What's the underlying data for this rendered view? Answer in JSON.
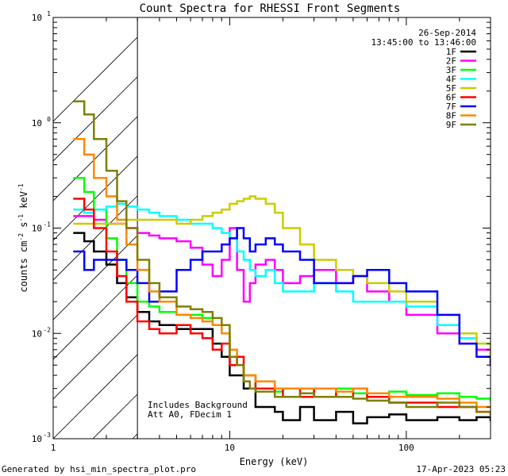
{
  "chart_data": {
    "type": "line",
    "title": "Count Spectra for RHESSI Front Segments",
    "xlabel": "Energy (keV)",
    "ylabel": "counts cm",
    "ylabel_sup1": "-2",
    "ylabel_mid": " s",
    "ylabel_sup2": "-1",
    "ylabel_end": " keV",
    "ylabel_sup3": "-1",
    "xscale": "log",
    "yscale": "log",
    "xlim": [
      1,
      300
    ],
    "ylim": [
      0.001,
      10
    ],
    "x_ticks": [
      {
        "value": 1,
        "label": "1"
      },
      {
        "value": 10,
        "label": "10"
      },
      {
        "value": 100,
        "label": "100"
      }
    ],
    "y_ticks": [
      {
        "value": 0.001,
        "base": "10",
        "exp": "-3"
      },
      {
        "value": 0.01,
        "base": "10",
        "exp": "-2"
      },
      {
        "value": 0.1,
        "base": "10",
        "exp": "-1"
      },
      {
        "value": 1,
        "base": "10",
        "exp": "0"
      },
      {
        "value": 10,
        "base": "10",
        "exp": "1"
      }
    ],
    "attenuator_cutoff_keV": 3,
    "date": "26-Sep-2014",
    "time_range": "13:45:00 to 13:46:00",
    "annotations": [
      "Includes Background",
      "Att A0, FDecim 1"
    ],
    "footer_left": "Generated by hsi_min_spectra_plot.pro",
    "footer_right": "17-Apr-2023 05:23",
    "legend_position": "top-right",
    "series": [
      {
        "name": "1F",
        "color": "#000000",
        "x": [
          1.3,
          1.5,
          1.7,
          2.0,
          2.3,
          2.6,
          3.0,
          3.5,
          4.0,
          5.0,
          6.0,
          7.0,
          8.0,
          9.0,
          10.0,
          11.0,
          12.0,
          13.0,
          14.0,
          16.0,
          18.0,
          20.0,
          25.0,
          30.0,
          40.0,
          50.0,
          60.0,
          80.0,
          100.0,
          150.0,
          200.0,
          250.0,
          300.0
        ],
        "y": [
          0.09,
          0.075,
          0.06,
          0.045,
          0.03,
          0.022,
          0.016,
          0.013,
          0.012,
          0.011,
          0.011,
          0.011,
          0.008,
          0.006,
          0.004,
          0.004,
          0.003,
          0.003,
          0.002,
          0.002,
          0.0018,
          0.0015,
          0.002,
          0.0015,
          0.0018,
          0.0014,
          0.0016,
          0.0017,
          0.0015,
          0.0016,
          0.0015,
          0.0016,
          0.0015
        ]
      },
      {
        "name": "2F",
        "color": "#ff00ff",
        "x": [
          1.3,
          1.5,
          1.7,
          2.0,
          2.3,
          2.6,
          3.0,
          3.5,
          4.0,
          5.0,
          6.0,
          7.0,
          8.0,
          9.0,
          10.0,
          11.0,
          12.0,
          13.0,
          14.0,
          16.0,
          18.0,
          20.0,
          25.0,
          30.0,
          40.0,
          50.0,
          60.0,
          80.0,
          100.0,
          150.0,
          200.0,
          250.0,
          300.0
        ],
        "y": [
          0.13,
          0.13,
          0.12,
          0.11,
          0.11,
          0.1,
          0.09,
          0.085,
          0.08,
          0.075,
          0.065,
          0.045,
          0.035,
          0.05,
          0.1,
          0.04,
          0.02,
          0.03,
          0.045,
          0.05,
          0.04,
          0.03,
          0.035,
          0.04,
          0.03,
          0.035,
          0.025,
          0.02,
          0.015,
          0.01,
          0.008,
          0.007,
          0.006
        ]
      },
      {
        "name": "3F",
        "color": "#00ff00",
        "x": [
          1.3,
          1.5,
          1.7,
          2.0,
          2.3,
          2.6,
          3.0,
          3.5,
          4.0,
          5.0,
          6.0,
          7.0,
          8.0,
          9.0,
          10.0,
          11.0,
          12.0,
          13.0,
          14.0,
          16.0,
          18.0,
          20.0,
          25.0,
          30.0,
          40.0,
          50.0,
          60.0,
          80.0,
          100.0,
          150.0,
          200.0,
          250.0,
          300.0
        ],
        "y": [
          0.3,
          0.22,
          0.15,
          0.08,
          0.05,
          0.03,
          0.02,
          0.018,
          0.016,
          0.015,
          0.015,
          0.014,
          0.012,
          0.01,
          0.006,
          0.005,
          0.004,
          0.004,
          0.003,
          0.003,
          0.0028,
          0.003,
          0.003,
          0.0025,
          0.003,
          0.0027,
          0.0025,
          0.0028,
          0.0026,
          0.0027,
          0.0025,
          0.0024,
          0.0023
        ]
      },
      {
        "name": "4F",
        "color": "#00ffff",
        "x": [
          1.3,
          1.5,
          1.7,
          2.0,
          2.3,
          2.6,
          3.0,
          3.5,
          4.0,
          5.0,
          6.0,
          7.0,
          8.0,
          9.0,
          10.0,
          11.0,
          12.0,
          13.0,
          14.0,
          16.0,
          18.0,
          20.0,
          25.0,
          30.0,
          40.0,
          50.0,
          60.0,
          80.0,
          100.0,
          150.0,
          200.0,
          250.0,
          300.0
        ],
        "y": [
          0.15,
          0.14,
          0.15,
          0.16,
          0.17,
          0.16,
          0.15,
          0.14,
          0.13,
          0.12,
          0.11,
          0.11,
          0.1,
          0.09,
          0.08,
          0.06,
          0.05,
          0.04,
          0.035,
          0.04,
          0.03,
          0.025,
          0.025,
          0.03,
          0.025,
          0.02,
          0.02,
          0.02,
          0.018,
          0.012,
          0.009,
          0.008,
          0.007
        ]
      },
      {
        "name": "5F",
        "color": "#cccc00",
        "x": [
          1.3,
          1.5,
          1.7,
          2.0,
          2.3,
          2.6,
          3.0,
          3.5,
          4.0,
          5.0,
          6.0,
          7.0,
          8.0,
          9.0,
          10.0,
          11.0,
          12.0,
          13.0,
          14.0,
          16.0,
          18.0,
          20.0,
          25.0,
          30.0,
          40.0,
          50.0,
          60.0,
          80.0,
          100.0,
          150.0,
          200.0,
          250.0,
          300.0
        ],
        "y": [
          0.11,
          0.11,
          0.11,
          0.11,
          0.11,
          0.12,
          0.12,
          0.12,
          0.12,
          0.11,
          0.12,
          0.13,
          0.14,
          0.15,
          0.17,
          0.18,
          0.19,
          0.2,
          0.19,
          0.17,
          0.14,
          0.1,
          0.07,
          0.05,
          0.04,
          0.035,
          0.03,
          0.025,
          0.02,
          0.015,
          0.01,
          0.008,
          0.006
        ]
      },
      {
        "name": "6F",
        "color": "#ff0000",
        "x": [
          1.3,
          1.5,
          1.7,
          2.0,
          2.3,
          2.6,
          3.0,
          3.5,
          4.0,
          5.0,
          6.0,
          7.0,
          8.0,
          9.0,
          10.0,
          11.0,
          12.0,
          13.0,
          14.0,
          16.0,
          18.0,
          20.0,
          25.0,
          30.0,
          40.0,
          50.0,
          60.0,
          80.0,
          100.0,
          150.0,
          200.0,
          250.0,
          300.0
        ],
        "y": [
          0.19,
          0.15,
          0.1,
          0.06,
          0.035,
          0.02,
          0.013,
          0.011,
          0.01,
          0.012,
          0.01,
          0.009,
          0.007,
          0.008,
          0.005,
          0.006,
          0.004,
          0.004,
          0.003,
          0.003,
          0.0025,
          0.003,
          0.0025,
          0.003,
          0.0025,
          0.003,
          0.0025,
          0.0022,
          0.0022,
          0.002,
          0.002,
          0.0018,
          0.0017
        ]
      },
      {
        "name": "7F",
        "color": "#0000ff",
        "x": [
          1.3,
          1.5,
          1.7,
          2.0,
          2.3,
          2.6,
          3.0,
          3.5,
          4.0,
          5.0,
          6.0,
          7.0,
          8.0,
          9.0,
          10.0,
          11.0,
          12.0,
          13.0,
          14.0,
          16.0,
          18.0,
          20.0,
          25.0,
          30.0,
          40.0,
          50.0,
          60.0,
          80.0,
          100.0,
          150.0,
          200.0,
          250.0,
          300.0
        ],
        "y": [
          0.06,
          0.04,
          0.05,
          0.05,
          0.05,
          0.04,
          0.03,
          0.02,
          0.025,
          0.04,
          0.05,
          0.06,
          0.06,
          0.07,
          0.08,
          0.1,
          0.08,
          0.06,
          0.07,
          0.08,
          0.07,
          0.06,
          0.05,
          0.03,
          0.03,
          0.035,
          0.04,
          0.03,
          0.025,
          0.015,
          0.008,
          0.006,
          0.005
        ]
      },
      {
        "name": "8F",
        "color": "#ff8800",
        "x": [
          1.3,
          1.5,
          1.7,
          2.0,
          2.3,
          2.6,
          3.0,
          3.5,
          4.0,
          5.0,
          6.0,
          7.0,
          8.0,
          9.0,
          10.0,
          11.0,
          12.0,
          13.0,
          14.0,
          16.0,
          18.0,
          20.0,
          25.0,
          30.0,
          40.0,
          50.0,
          60.0,
          80.0,
          100.0,
          150.0,
          200.0,
          250.0,
          300.0
        ],
        "y": [
          0.7,
          0.5,
          0.3,
          0.2,
          0.12,
          0.07,
          0.04,
          0.025,
          0.02,
          0.015,
          0.014,
          0.013,
          0.012,
          0.01,
          0.007,
          0.005,
          0.004,
          0.004,
          0.0035,
          0.0035,
          0.003,
          0.003,
          0.003,
          0.003,
          0.0028,
          0.003,
          0.0027,
          0.0025,
          0.0025,
          0.0024,
          0.0022,
          0.002,
          0.002
        ]
      },
      {
        "name": "9F",
        "color": "#7f7f00",
        "x": [
          1.3,
          1.5,
          1.7,
          2.0,
          2.3,
          2.6,
          3.0,
          3.5,
          4.0,
          5.0,
          6.0,
          7.0,
          8.0,
          9.0,
          10.0,
          11.0,
          12.0,
          13.0,
          14.0,
          16.0,
          18.0,
          20.0,
          25.0,
          30.0,
          40.0,
          50.0,
          60.0,
          80.0,
          100.0,
          150.0,
          200.0,
          250.0,
          300.0
        ],
        "y": [
          1.6,
          1.2,
          0.7,
          0.35,
          0.18,
          0.1,
          0.05,
          0.03,
          0.022,
          0.018,
          0.017,
          0.016,
          0.014,
          0.012,
          0.006,
          0.005,
          0.0035,
          0.003,
          0.0028,
          0.0028,
          0.0025,
          0.0025,
          0.0027,
          0.0025,
          0.0025,
          0.0024,
          0.0023,
          0.0022,
          0.002,
          0.0022,
          0.002,
          0.0018,
          0.0017
        ]
      }
    ]
  }
}
